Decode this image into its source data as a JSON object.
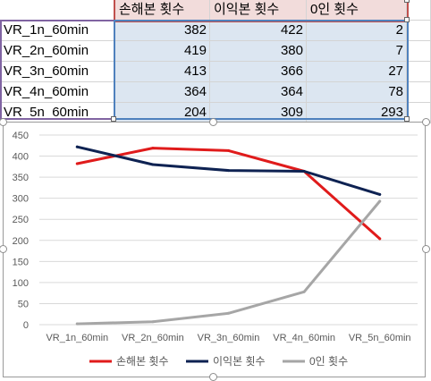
{
  "table": {
    "headers": [
      "손해본 횟수",
      "이익본 횟수",
      "0인 횟수"
    ],
    "rows": [
      {
        "name": "VR_1n_60min",
        "values": [
          "382",
          "422",
          "2"
        ]
      },
      {
        "name": "VR_2n_60min",
        "values": [
          "419",
          "380",
          "7"
        ]
      },
      {
        "name": "VR_3n_60min",
        "values": [
          "413",
          "366",
          "27"
        ]
      },
      {
        "name": "VR_4n_60min",
        "values": [
          "364",
          "364",
          "78"
        ]
      },
      {
        "name": "VR_5n_60min",
        "values": [
          "204",
          "309",
          "293"
        ]
      }
    ]
  },
  "chart_data": {
    "type": "line",
    "categories": [
      "VR_1n_60min",
      "VR_2n_60min",
      "VR_3n_60min",
      "VR_4n_60min",
      "VR_5n_60min"
    ],
    "series": [
      {
        "name": "손해본 횟수",
        "values": [
          382,
          419,
          413,
          364,
          204
        ],
        "color": "#e01b1b"
      },
      {
        "name": "이익본 횟수",
        "values": [
          422,
          380,
          366,
          364,
          309
        ],
        "color": "#0e2252"
      },
      {
        "name": "0인 횟수",
        "values": [
          2,
          7,
          27,
          78,
          293
        ],
        "color": "#a6a6a6"
      }
    ],
    "ylim": [
      0,
      450
    ],
    "yticks": [
      "0",
      "50",
      "100",
      "150",
      "200",
      "250",
      "300",
      "350",
      "400",
      "450"
    ],
    "grid": true,
    "legend": "bottom"
  }
}
